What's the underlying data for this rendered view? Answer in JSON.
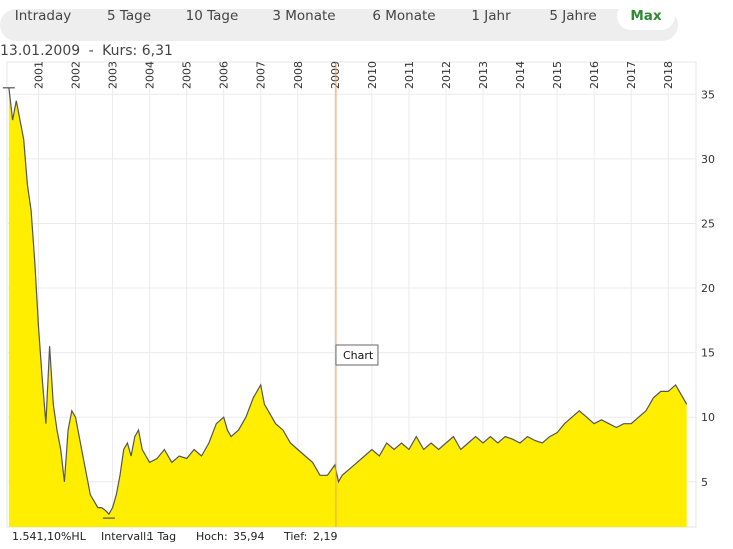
{
  "tabs": [
    {
      "label": "Intraday",
      "active": false
    },
    {
      "label": "5 Tage",
      "active": false
    },
    {
      "label": "10 Tage",
      "active": false
    },
    {
      "label": "3 Monate",
      "active": false
    },
    {
      "label": "6 Monate",
      "active": false
    },
    {
      "label": "1 Jahr",
      "active": false
    },
    {
      "label": "5 Jahre",
      "active": false
    },
    {
      "label": "Max",
      "active": true
    }
  ],
  "info": {
    "date": "13.01.2009",
    "sep": "-",
    "price_label": "Kurs: 6,31"
  },
  "tooltip": "Chart",
  "footer": {
    "change": "1.541,10%HL",
    "interval_label": "Intervall:",
    "interval_value": "1 Tag",
    "high_label": "Hoch:",
    "high_value": "35,94",
    "low_label": "Tief:",
    "low_value": "2,19"
  },
  "colors": {
    "fill": "#ffee00",
    "line": "#555555",
    "crosshair": "#f0a060",
    "active_tab": "#2e8b32"
  },
  "chart_data": {
    "type": "area",
    "x_ticks": [
      "2001",
      "2002",
      "2003",
      "2004",
      "2005",
      "2006",
      "2007",
      "2008",
      "2009",
      "2010",
      "2011",
      "2012",
      "2013",
      "2014",
      "2015",
      "2016",
      "2017",
      "2018"
    ],
    "y_ticks": [
      "5",
      "10",
      "15",
      "20",
      "25",
      "30",
      "35"
    ],
    "xlim": [
      2000.15,
      2018.75
    ],
    "ylim": [
      1.5,
      37.5
    ],
    "grid": true,
    "crosshair_x": 2009.03,
    "series": [
      {
        "x": [
          2000.2,
          2000.3,
          2000.4,
          2000.5,
          2000.6,
          2000.7,
          2000.8,
          2000.9,
          2001.0,
          2001.1,
          2001.2,
          2001.3,
          2001.4,
          2001.5,
          2001.6,
          2001.7,
          2001.8,
          2001.9,
          2002.0,
          2002.1,
          2002.2,
          2002.3,
          2002.4,
          2002.5,
          2002.6,
          2002.7,
          2002.8,
          2002.9,
          2003.0,
          2003.1,
          2003.2,
          2003.3,
          2003.4,
          2003.5,
          2003.6,
          2003.7,
          2003.8,
          2003.9,
          2004.0,
          2004.2,
          2004.4,
          2004.6,
          2004.8,
          2005.0,
          2005.2,
          2005.4,
          2005.6,
          2005.8,
          2006.0,
          2006.1,
          2006.2,
          2006.4,
          2006.6,
          2006.8,
          2007.0,
          2007.1,
          2007.2,
          2007.4,
          2007.6,
          2007.8,
          2008.0,
          2008.2,
          2008.4,
          2008.6,
          2008.8,
          2009.0,
          2009.1,
          2009.2,
          2009.4,
          2009.6,
          2009.8,
          2010.0,
          2010.2,
          2010.4,
          2010.6,
          2010.8,
          2011.0,
          2011.2,
          2011.4,
          2011.6,
          2011.8,
          2012.0,
          2012.2,
          2012.4,
          2012.6,
          2012.8,
          2013.0,
          2013.2,
          2013.4,
          2013.6,
          2013.8,
          2014.0,
          2014.2,
          2014.4,
          2014.6,
          2014.8,
          2015.0,
          2015.2,
          2015.4,
          2015.6,
          2015.8,
          2016.0,
          2016.2,
          2016.4,
          2016.6,
          2016.8,
          2017.0,
          2017.2,
          2017.4,
          2017.6,
          2017.8,
          2018.0,
          2018.2,
          2018.4,
          2018.5
        ],
        "y": [
          35.5,
          33.0,
          34.5,
          33.0,
          31.5,
          28.0,
          26.0,
          22.0,
          17.0,
          13.0,
          9.5,
          15.5,
          11.0,
          9.0,
          7.5,
          5.0,
          9.0,
          10.5,
          10.0,
          8.5,
          7.0,
          5.5,
          4.0,
          3.5,
          3.0,
          3.0,
          2.8,
          2.5,
          3.0,
          4.0,
          5.5,
          7.5,
          8.0,
          7.0,
          8.5,
          9.0,
          7.5,
          7.0,
          6.5,
          6.8,
          7.5,
          6.5,
          7.0,
          6.8,
          7.5,
          7.0,
          8.0,
          9.5,
          10.0,
          9.0,
          8.5,
          9.0,
          10.0,
          11.5,
          12.5,
          11.0,
          10.5,
          9.5,
          9.0,
          8.0,
          7.5,
          7.0,
          6.5,
          5.5,
          5.5,
          6.3,
          5.0,
          5.5,
          6.0,
          6.5,
          7.0,
          7.5,
          7.0,
          8.0,
          7.5,
          8.0,
          7.5,
          8.5,
          7.5,
          8.0,
          7.5,
          8.0,
          8.5,
          7.5,
          8.0,
          8.5,
          8.0,
          8.5,
          8.0,
          8.5,
          8.3,
          8.0,
          8.5,
          8.2,
          8.0,
          8.5,
          8.8,
          9.5,
          10.0,
          10.5,
          10.0,
          9.5,
          9.8,
          9.5,
          9.2,
          9.5,
          9.5,
          10.0,
          10.5,
          11.5,
          12.0,
          12.0,
          12.5,
          11.5,
          11.0
        ]
      }
    ]
  }
}
